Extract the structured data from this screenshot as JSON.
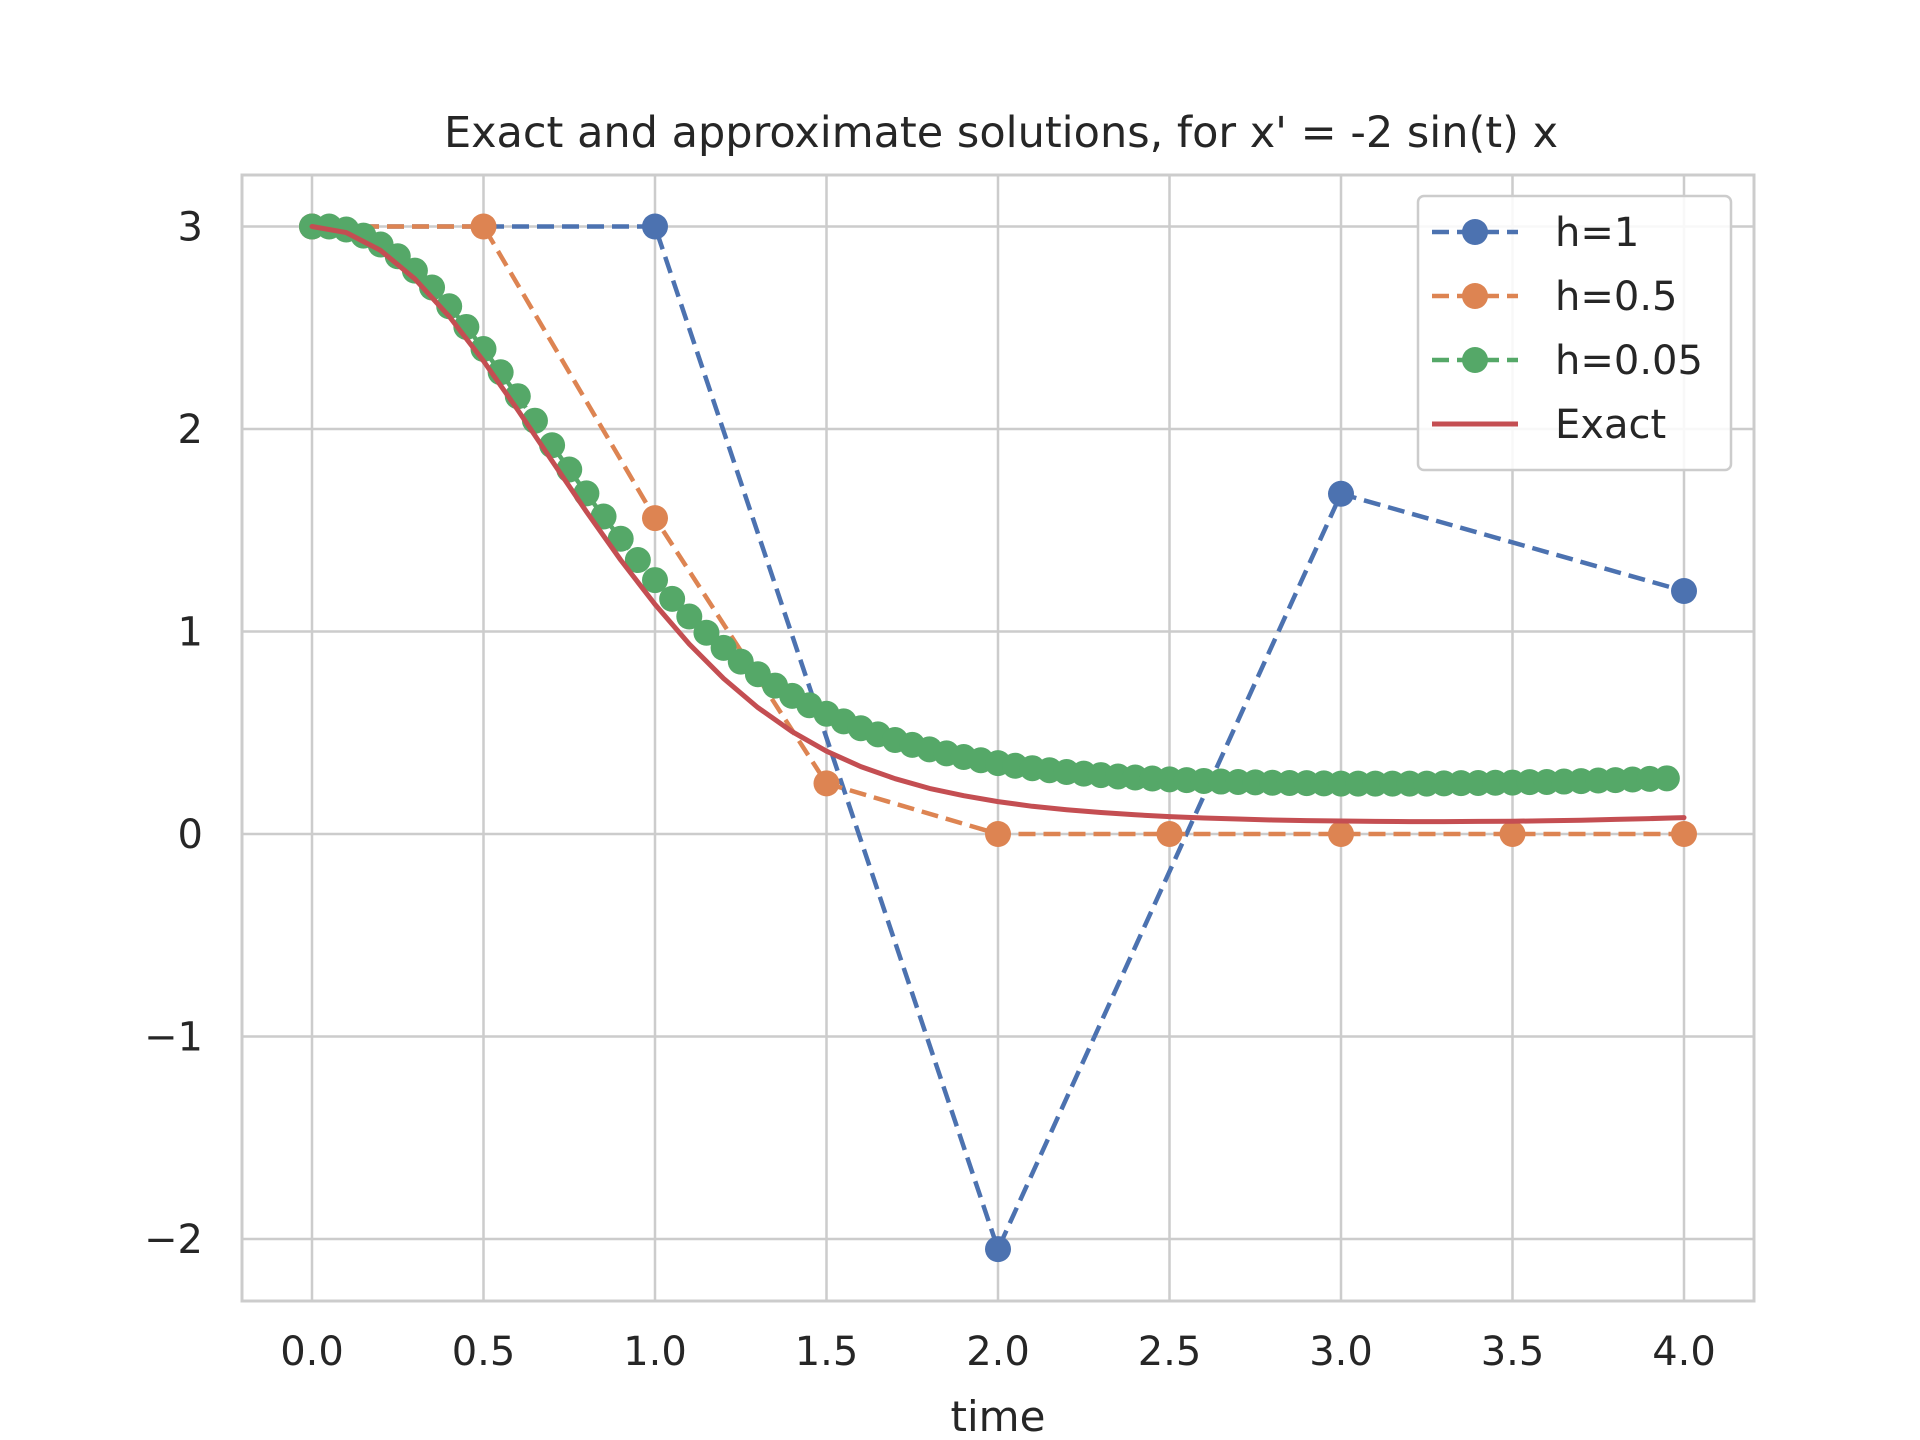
{
  "chart_data": {
    "type": "line",
    "title": "Exact and approximate solutions, for x' = -2 sin(t) x",
    "xlabel": "time",
    "ylabel": "",
    "xlim": [
      -0.2,
      4.2
    ],
    "ylim": [
      -2.3,
      3.25
    ],
    "x_ticks": [
      0.0,
      0.5,
      1.0,
      1.5,
      2.0,
      2.5,
      3.0,
      3.5,
      4.0
    ],
    "x_tick_labels": [
      "0.0",
      "0.5",
      "1.0",
      "1.5",
      "2.0",
      "2.5",
      "3.0",
      "3.5",
      "4.0"
    ],
    "y_ticks": [
      -2,
      -1,
      0,
      1,
      2,
      3
    ],
    "y_tick_labels": [
      "−2",
      "−1",
      "0",
      "1",
      "2",
      "3"
    ],
    "grid": true,
    "legend_position": "top-right",
    "series": [
      {
        "name": "h=1",
        "color": "#4c72b0",
        "style": "dashed-markers",
        "x": [
          0,
          1,
          2,
          3,
          4
        ],
        "y": [
          3.0,
          3.0,
          -2.05,
          1.68,
          1.2
        ]
      },
      {
        "name": "h=0.5",
        "color": "#dd8452",
        "style": "dashed-markers",
        "x": [
          0,
          0.5,
          1.0,
          1.5,
          2.0,
          2.5,
          3.0,
          3.5,
          4.0
        ],
        "y": [
          3.0,
          3.0,
          1.56,
          0.25,
          0.0,
          0.0,
          0.0,
          0.0,
          0.0
        ]
      },
      {
        "name": "h=0.05",
        "color": "#55a868",
        "style": "dashed-markers",
        "x": [
          0.0,
          0.05,
          0.1,
          0.15,
          0.2,
          0.25,
          0.3,
          0.35,
          0.4,
          0.45,
          0.5,
          0.55,
          0.6,
          0.65,
          0.7,
          0.75,
          0.8,
          0.85,
          0.9,
          0.95,
          1.0,
          1.05,
          1.1,
          1.15,
          1.2,
          1.25,
          1.3,
          1.35,
          1.4,
          1.45,
          1.5,
          1.55,
          1.6,
          1.65,
          1.7,
          1.75,
          1.8,
          1.85,
          1.9,
          1.95,
          2.0,
          2.05,
          2.1,
          2.15,
          2.2,
          2.25,
          2.3,
          2.35,
          2.4,
          2.45,
          2.5,
          2.55,
          2.6,
          2.65,
          2.7,
          2.75,
          2.8,
          2.85,
          2.9,
          2.95,
          3.0,
          3.05,
          3.1,
          3.15,
          3.2,
          3.25,
          3.3,
          3.35,
          3.4,
          3.45,
          3.5,
          3.55,
          3.6,
          3.65,
          3.7,
          3.75,
          3.8,
          3.85,
          3.9,
          3.95
        ],
        "y": [
          3.0,
          3.0,
          2.985,
          2.955,
          2.911,
          2.853,
          2.782,
          2.699,
          2.606,
          2.504,
          2.395,
          2.28,
          2.162,
          2.041,
          1.92,
          1.8,
          1.682,
          1.568,
          1.458,
          1.353,
          1.254,
          1.161,
          1.074,
          0.994,
          0.919,
          0.851,
          0.789,
          0.733,
          0.682,
          0.636,
          0.594,
          0.556,
          0.522,
          0.492,
          0.464,
          0.44,
          0.418,
          0.398,
          0.38,
          0.364,
          0.35,
          0.337,
          0.325,
          0.315,
          0.306,
          0.298,
          0.291,
          0.284,
          0.279,
          0.274,
          0.27,
          0.266,
          0.262,
          0.259,
          0.257,
          0.255,
          0.253,
          0.252,
          0.251,
          0.25,
          0.249,
          0.249,
          0.249,
          0.249,
          0.249,
          0.249,
          0.25,
          0.251,
          0.252,
          0.253,
          0.254,
          0.256,
          0.257,
          0.259,
          0.261,
          0.264,
          0.266,
          0.269,
          0.272,
          0.275
        ]
      },
      {
        "name": "Exact",
        "color": "#c44e52",
        "style": "solid",
        "x": [
          0.0,
          0.1,
          0.2,
          0.3,
          0.4,
          0.5,
          0.6,
          0.7,
          0.8,
          0.9,
          1.0,
          1.1,
          1.2,
          1.3,
          1.4,
          1.5,
          1.6,
          1.7,
          1.8,
          1.9,
          2.0,
          2.1,
          2.2,
          2.3,
          2.4,
          2.5,
          2.6,
          2.7,
          2.8,
          2.9,
          3.0,
          3.1,
          3.2,
          3.3,
          3.4,
          3.5,
          3.6,
          3.7,
          3.8,
          3.9,
          4.0
        ],
        "y": [
          3.0,
          2.97,
          2.882,
          2.741,
          2.556,
          2.336,
          2.094,
          1.842,
          1.592,
          1.353,
          1.134,
          0.938,
          0.768,
          0.624,
          0.505,
          0.409,
          0.333,
          0.273,
          0.225,
          0.189,
          0.16,
          0.137,
          0.12,
          0.106,
          0.095,
          0.086,
          0.079,
          0.074,
          0.069,
          0.066,
          0.064,
          0.062,
          0.061,
          0.061,
          0.062,
          0.063,
          0.065,
          0.068,
          0.072,
          0.076,
          0.081
        ]
      }
    ]
  }
}
